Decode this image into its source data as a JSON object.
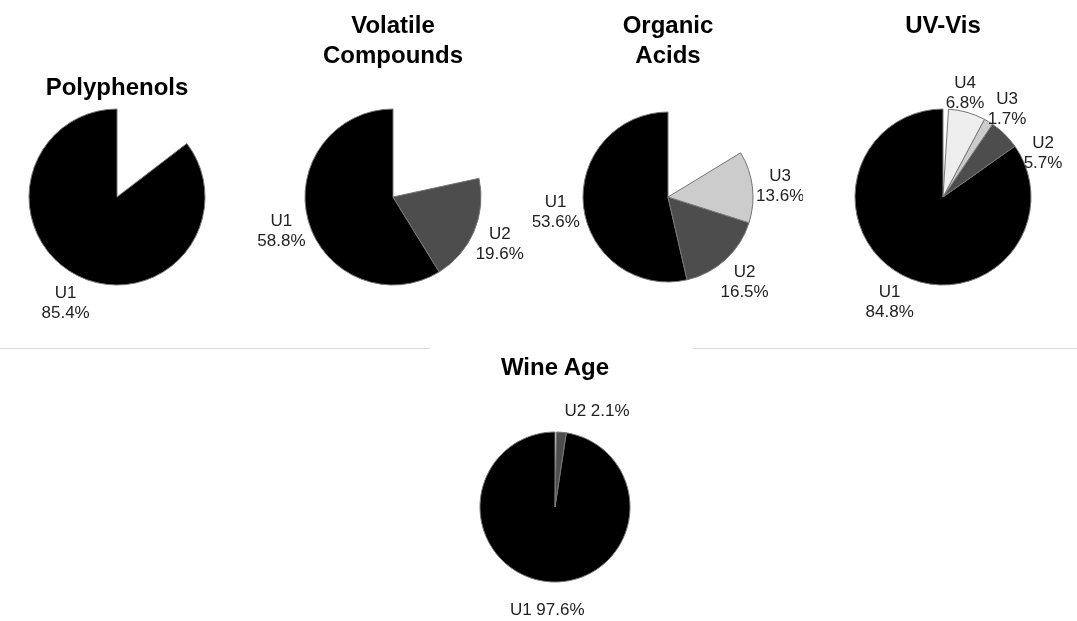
{
  "chart_data": [
    {
      "type": "pie",
      "title": "Polyphenols",
      "categories": [
        "U1"
      ],
      "values": [
        85.4
      ],
      "colors": [
        "#000000"
      ],
      "value_labels": [
        "85.4%"
      ]
    },
    {
      "type": "pie",
      "title": "Volatile Compounds",
      "categories": [
        "U1",
        "U2"
      ],
      "values": [
        58.8,
        19.6
      ],
      "colors": [
        "#000000",
        "#4d4d4d"
      ],
      "value_labels": [
        "58.8%",
        "19.6%"
      ]
    },
    {
      "type": "pie",
      "title": "Organic Acids",
      "categories": [
        "U1",
        "U2",
        "U3"
      ],
      "values": [
        53.6,
        16.5,
        13.6
      ],
      "colors": [
        "#000000",
        "#4d4d4d",
        "#cccccc"
      ],
      "value_labels": [
        "53.6%",
        "16.5%",
        "13.6%"
      ]
    },
    {
      "type": "pie",
      "title": "UV-Vis",
      "categories": [
        "U1",
        "U2",
        "U3",
        "U4"
      ],
      "values": [
        84.8,
        5.7,
        1.7,
        6.8
      ],
      "colors": [
        "#000000",
        "#4d4d4d",
        "#cccccc",
        "#eeeeee"
      ],
      "value_labels": [
        "84.8%",
        "5.7%",
        "1.7%",
        "6.8%"
      ]
    },
    {
      "type": "pie",
      "title": "Wine Age",
      "categories": [
        "U1",
        "U2"
      ],
      "values": [
        97.6,
        2.1
      ],
      "colors": [
        "#000000",
        "#4d4d4d"
      ],
      "value_labels": [
        "97.6%",
        "2.1%"
      ]
    }
  ]
}
